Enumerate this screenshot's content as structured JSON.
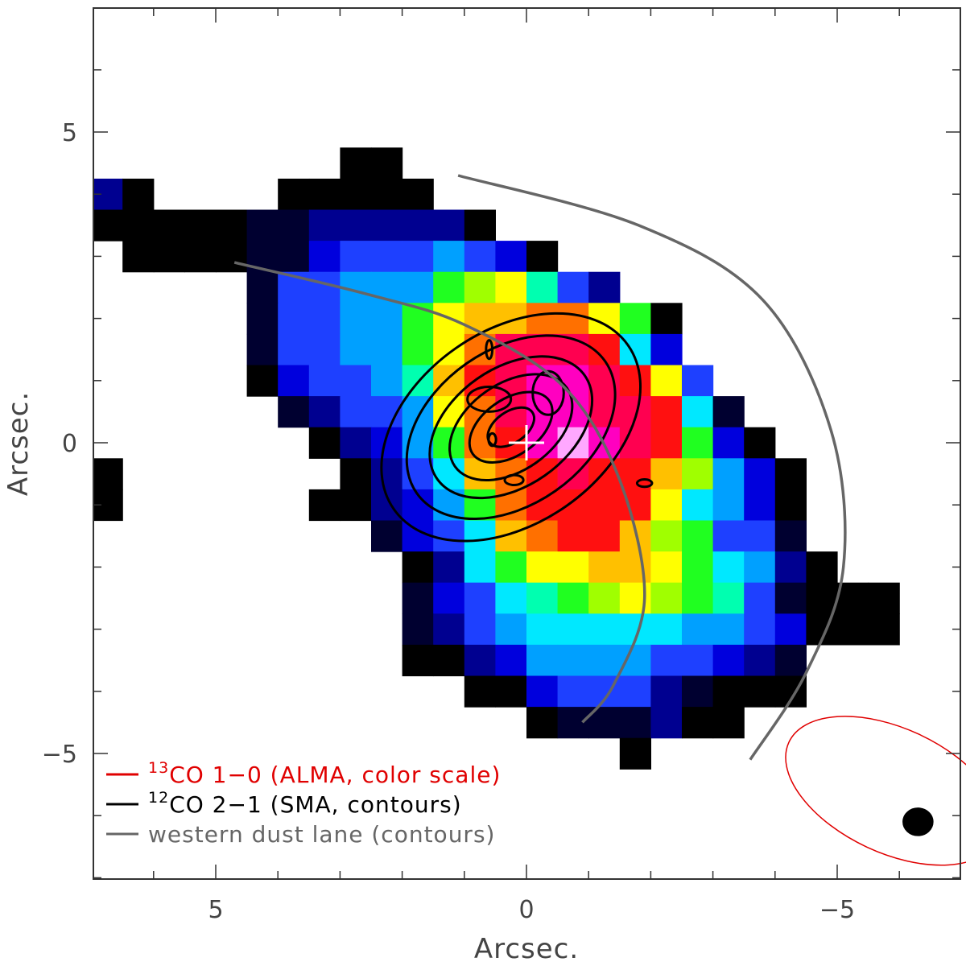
{
  "chart_data": {
    "type": "heatmap",
    "title": "",
    "xlabel": "Arcsec.",
    "ylabel": "Arcsec.",
    "xlim": [
      7,
      -7
    ],
    "ylim": [
      -7,
      7
    ],
    "x_ticks": [
      {
        "value": 5,
        "label": "5"
      },
      {
        "value": 0,
        "label": "0"
      },
      {
        "value": -5,
        "label": "−5"
      }
    ],
    "y_ticks": [
      {
        "value": 5,
        "label": "5"
      },
      {
        "value": 0,
        "label": "0"
      },
      {
        "value": -5,
        "label": "−5"
      }
    ],
    "heatmap": {
      "description_units": "normalized 13CO 1-0 intensity (0 = lowest, 1 = peak)",
      "pixel_size_arcsec": 0.5,
      "x_start": 7.0,
      "y_start": 4.75,
      "rows": [
        [
          null,
          null,
          null,
          null,
          null,
          null,
          null,
          null,
          0.02,
          0.02,
          null,
          null,
          null,
          null,
          null,
          null,
          null,
          null,
          null,
          null,
          null,
          null,
          null,
          null,
          null,
          null,
          null,
          null
        ],
        [
          0.1,
          0.03,
          null,
          null,
          null,
          null,
          0,
          0.02,
          0,
          0,
          0,
          null,
          null,
          null,
          null,
          null,
          null,
          null,
          null,
          null,
          null,
          null,
          null,
          null,
          null,
          null,
          null,
          null
        ],
        [
          0.03,
          0.03,
          0,
          0,
          0,
          0.04,
          0.06,
          0.15,
          0.15,
          0.15,
          0.1,
          0.12,
          0,
          null,
          null,
          null,
          null,
          null,
          null,
          null,
          null,
          null,
          null,
          null,
          null,
          null,
          null,
          null
        ],
        [
          null,
          0,
          0,
          0,
          0,
          0.08,
          0.07,
          0.2,
          0.22,
          0.24,
          0.24,
          0.3,
          0.22,
          0.16,
          0.02,
          null,
          null,
          null,
          null,
          null,
          null,
          null,
          null,
          null,
          null,
          null,
          null,
          null
        ],
        [
          null,
          null,
          null,
          null,
          null,
          0.08,
          0.22,
          0.24,
          0.3,
          0.3,
          0.34,
          0.48,
          0.56,
          0.6,
          0.42,
          0.28,
          0.1,
          null,
          null,
          null,
          null,
          null,
          null,
          null,
          null,
          null,
          null,
          null
        ],
        [
          null,
          null,
          null,
          null,
          null,
          0.08,
          0.24,
          0.26,
          0.3,
          0.34,
          0.5,
          0.6,
          0.68,
          0.7,
          0.75,
          0.72,
          0.65,
          0.5,
          0.02,
          null,
          null,
          null,
          null,
          null,
          null,
          null,
          null,
          null
        ],
        [
          null,
          null,
          null,
          null,
          null,
          0.05,
          0.22,
          0.28,
          0.3,
          0.34,
          0.48,
          0.62,
          0.78,
          0.86,
          0.86,
          0.88,
          0.82,
          0.4,
          0.18,
          null,
          null,
          null,
          null,
          null,
          null,
          null,
          null,
          null
        ],
        [
          null,
          null,
          null,
          null,
          null,
          0.02,
          0.18,
          0.24,
          0.28,
          0.32,
          0.45,
          0.66,
          0.8,
          0.88,
          0.92,
          0.92,
          0.86,
          0.82,
          0.62,
          0.26,
          null,
          null,
          null,
          null,
          null,
          null,
          null,
          null
        ],
        [
          null,
          null,
          null,
          null,
          null,
          null,
          0.04,
          0.1,
          0.22,
          0.28,
          0.34,
          0.62,
          0.78,
          0.88,
          0.96,
          0.96,
          0.9,
          0.86,
          0.82,
          0.36,
          0.05,
          null,
          null,
          null,
          null,
          null,
          null,
          null
        ],
        [
          null,
          null,
          null,
          null,
          null,
          null,
          null,
          0,
          0.1,
          0.2,
          0.3,
          0.5,
          0.72,
          0.84,
          0.94,
          0.98,
          0.92,
          0.86,
          0.8,
          0.5,
          0.2,
          0.02,
          null,
          null,
          null,
          null,
          null,
          null
        ],
        [
          0,
          null,
          null,
          null,
          null,
          null,
          null,
          null,
          0,
          0.14,
          0.26,
          0.4,
          0.68,
          0.76,
          0.84,
          0.86,
          0.84,
          0.8,
          0.66,
          0.56,
          0.3,
          0.18,
          0,
          null,
          null,
          null,
          null,
          null
        ],
        [
          0,
          null,
          null,
          null,
          null,
          null,
          null,
          0.02,
          0.02,
          0.12,
          0.2,
          0.3,
          0.5,
          0.78,
          0.8,
          0.8,
          0.82,
          0.8,
          0.6,
          0.4,
          0.34,
          0.2,
          0.03,
          null,
          null,
          null,
          null,
          null
        ],
        [
          null,
          null,
          null,
          null,
          null,
          null,
          null,
          null,
          null,
          0.04,
          0.16,
          0.22,
          0.38,
          0.7,
          0.76,
          0.8,
          0.8,
          0.7,
          0.58,
          0.5,
          0.28,
          0.22,
          0.04,
          null,
          null,
          null,
          null,
          null
        ],
        [
          null,
          null,
          null,
          null,
          null,
          null,
          null,
          null,
          null,
          null,
          0.02,
          0.12,
          0.4,
          0.5,
          0.6,
          0.64,
          0.7,
          0.66,
          0.6,
          0.5,
          0.4,
          0.3,
          0.12,
          0,
          null,
          null,
          null,
          null
        ],
        [
          null,
          null,
          null,
          null,
          null,
          null,
          null,
          null,
          null,
          null,
          0.06,
          0.16,
          0.24,
          0.36,
          0.42,
          0.52,
          0.56,
          0.6,
          0.54,
          0.5,
          0.42,
          0.26,
          0.08,
          0,
          0,
          0,
          null,
          null
        ],
        [
          null,
          null,
          null,
          null,
          null,
          null,
          null,
          null,
          null,
          null,
          0.04,
          0.1,
          0.22,
          0.32,
          0.36,
          0.4,
          0.4,
          0.4,
          0.38,
          0.34,
          0.34,
          0.24,
          0.16,
          0,
          0,
          0,
          null,
          null
        ],
        [
          null,
          null,
          null,
          null,
          null,
          null,
          null,
          null,
          null,
          null,
          0,
          0,
          0.1,
          0.2,
          0.3,
          0.34,
          0.34,
          0.3,
          0.26,
          0.22,
          0.16,
          0.1,
          0.08,
          null,
          null,
          null,
          null,
          null
        ],
        [
          null,
          null,
          null,
          null,
          null,
          null,
          null,
          null,
          null,
          null,
          null,
          null,
          0.02,
          0.02,
          0.16,
          0.24,
          0.24,
          0.24,
          0.1,
          0.04,
          0.02,
          0.02,
          0,
          null,
          null,
          null,
          null,
          null
        ],
        [
          null,
          null,
          null,
          null,
          null,
          null,
          null,
          null,
          null,
          null,
          null,
          null,
          null,
          null,
          0,
          0.04,
          0.04,
          0.06,
          0.1,
          0.02,
          0,
          null,
          null,
          null,
          null,
          null,
          null,
          null
        ],
        [
          null,
          null,
          null,
          null,
          null,
          null,
          null,
          null,
          null,
          null,
          null,
          null,
          null,
          null,
          null,
          null,
          null,
          0,
          null,
          null,
          null,
          null,
          null,
          null,
          null,
          null,
          null,
          null
        ]
      ]
    },
    "contours": {
      "series_name": "12CO 2-1 (SMA, contours)",
      "color": "#000000",
      "center": [
        0.25,
        0.25
      ],
      "levels": [
        {
          "rx": 2.3,
          "ry": 1.55,
          "angle_deg": -35
        },
        {
          "rx": 1.85,
          "ry": 1.25,
          "angle_deg": -35
        },
        {
          "rx": 1.45,
          "ry": 0.95,
          "angle_deg": -35
        },
        {
          "rx": 1.1,
          "ry": 0.7,
          "angle_deg": -35
        },
        {
          "rx": 0.75,
          "ry": 0.45,
          "angle_deg": -35
        },
        {
          "rx": 0.42,
          "ry": 0.25,
          "angle_deg": -35
        }
      ],
      "peak_blobs": [
        {
          "x": 0.6,
          "y": 0.7,
          "rx": 0.35,
          "ry": 0.2
        },
        {
          "x": -0.35,
          "y": 0.8,
          "rx": 0.25,
          "ry": 0.35
        },
        {
          "x": 0.2,
          "y": -0.6,
          "rx": 0.15,
          "ry": 0.08
        },
        {
          "x": 0.55,
          "y": 0.05,
          "rx": 0.06,
          "ry": 0.1
        },
        {
          "x": 0.6,
          "y": 1.5,
          "rx": 0.05,
          "ry": 0.15
        },
        {
          "x": -1.9,
          "y": -0.65,
          "rx": 0.12,
          "ry": 0.06
        }
      ]
    },
    "dust_lanes": {
      "series_name": "western dust lane (contours)",
      "color": "#666666",
      "paths": [
        [
          [
            4.7,
            2.9
          ],
          [
            2.6,
            2.4
          ],
          [
            1.0,
            1.9
          ],
          [
            -0.6,
            0.9
          ],
          [
            -1.5,
            -0.6
          ],
          [
            -1.9,
            -2.5
          ],
          [
            -1.4,
            -3.9
          ],
          [
            -0.9,
            -4.5
          ]
        ],
        [
          [
            1.1,
            4.3
          ],
          [
            -1.8,
            3.5
          ],
          [
            -3.8,
            2.3
          ],
          [
            -4.9,
            0.2
          ],
          [
            -5.1,
            -2.0
          ],
          [
            -4.5,
            -3.7
          ],
          [
            -3.6,
            -5.1
          ]
        ]
      ]
    },
    "center_marker": {
      "x": 0.0,
      "y": 0.0,
      "color": "#ffffff"
    },
    "beams": [
      {
        "name": "ALMA beam",
        "x": -5.9,
        "y": -5.6,
        "rx": 1.85,
        "ry": 1.0,
        "angle_deg": 25,
        "stroke": "#e00000",
        "fill": "none"
      },
      {
        "name": "SMA beam",
        "x": -6.3,
        "y": -6.1,
        "rx": 0.24,
        "ry": 0.22,
        "angle_deg": 0,
        "stroke": "#000000",
        "fill": "#000000"
      }
    ],
    "legend": {
      "placement": "bottom-left",
      "entries": [
        {
          "sup": "13",
          "text": "CO 1−0 (ALMA, color scale)",
          "color": "#e00000"
        },
        {
          "sup": "12",
          "text": "CO 2−1 (SMA, contours)",
          "color": "#000000"
        },
        {
          "sup": "",
          "text": "western dust lane (contours)",
          "color": "#666666"
        }
      ]
    },
    "colormap": [
      "#000000",
      "#000030",
      "#000090",
      "#0000dd",
      "#1e40ff",
      "#00a0ff",
      "#00e8ff",
      "#00ffb0",
      "#20ff20",
      "#a0ff00",
      "#ffff00",
      "#ffc000",
      "#ff7000",
      "#ff1010",
      "#ff0050",
      "#ff00c0",
      "#ffa8ff"
    ]
  }
}
